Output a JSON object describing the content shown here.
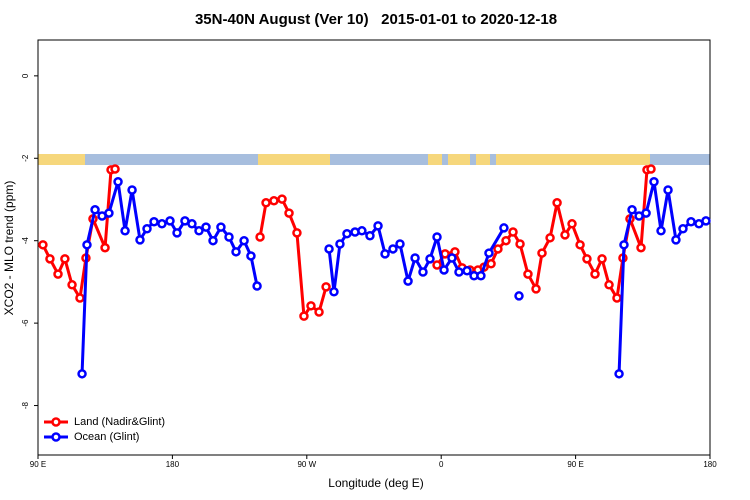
{
  "chart_data": {
    "type": "line",
    "title": "35N-40N August (Ver 10)   2015-01-01 to 2020-12-18",
    "x_label": "Longitude (deg E)",
    "y_label": "XCO2 - MLO trend (ppm)",
    "xlim": [
      90,
      540
    ],
    "ylim": [
      -9.2,
      0.87
    ],
    "xticks": [
      {
        "value": 90,
        "label": "90 E"
      },
      {
        "value": 180,
        "label": "180"
      },
      {
        "value": 270,
        "label": "90 W"
      },
      {
        "value": 360,
        "label": "0"
      },
      {
        "value": 450,
        "label": "90 E"
      },
      {
        "value": 540,
        "label": "180"
      }
    ],
    "yticks": [
      0,
      -2,
      -4,
      -6,
      -8
    ],
    "legend": "bottom-left",
    "series": [
      {
        "name": "Land (Nadir&Glint)",
        "color": "#ff0000",
        "x": [
          93.3,
          98,
          103.4,
          108,
          112.8,
          118.1,
          122.1,
          126.8,
          134.9,
          138.9,
          141.6,
          null,
          238.7,
          242.7,
          248,
          253.4,
          258.1,
          263.4,
          268.1,
          272.8,
          278.2,
          282.9,
          null,
          357.2,
          362.6,
          369.2,
          374,
          379.3,
          384.6,
          388.7,
          393.4,
          398,
          403.4,
          408.1,
          412.8,
          418.1,
          423.5,
          427.5,
          432.9,
          437.6,
          442.9,
          447.6,
          453,
          457.6,
          463,
          467.7,
          472.4,
          477.7,
          481.7,
          486.4,
          493.8,
          497.8,
          500.5
        ],
        "values": [
          -4.1,
          -4.44,
          -4.81,
          -4.44,
          -5.07,
          -5.39,
          -4.42,
          -3.47,
          -4.17,
          -2.28,
          -2.26,
          null,
          -3.91,
          -3.08,
          -3.03,
          -2.99,
          -3.33,
          -3.81,
          -5.83,
          -5.58,
          -5.73,
          -5.12,
          null,
          -4.59,
          -4.32,
          -4.27,
          -4.66,
          -4.71,
          -4.71,
          -4.64,
          -4.56,
          -4.2,
          -4.0,
          -3.79,
          -4.08,
          -4.81,
          -5.17,
          -4.3,
          -3.93,
          -3.08,
          -3.86,
          -3.59,
          -4.1,
          -4.44,
          -4.81,
          -4.44,
          -5.07,
          -5.39,
          -4.42,
          -3.47,
          -4.17,
          -2.28,
          -2.26
        ]
      },
      {
        "name": "Ocean (Glint)",
        "color": "#0000ff",
        "x": [
          119.5,
          122.8,
          128.2,
          132.9,
          137.5,
          143.6,
          148.3,
          153,
          158.3,
          163,
          167.7,
          173,
          178.4,
          183.1,
          188.4,
          193.1,
          197.8,
          202.5,
          207.2,
          212.5,
          217.9,
          222.6,
          228,
          232.6,
          236.7,
          null,
          284.9,
          288.2,
          292.2,
          296.9,
          302.3,
          306.9,
          312.3,
          317.7,
          322.4,
          327.7,
          332.4,
          337.8,
          342.5,
          347.8,
          352.5,
          357.2,
          361.9,
          367.2,
          371.9,
          377.3,
          382,
          386.6,
          392,
          402,
          null,
          412.1,
          null,
          479.1,
          482.4,
          487.8,
          492.5,
          497.2,
          502.5,
          507.2,
          511.9,
          517.2,
          521.9,
          527.3,
          532.6,
          537.3
        ],
        "values": [
          -7.23,
          -4.1,
          -3.25,
          -3.4,
          -3.33,
          -2.57,
          -3.76,
          -2.77,
          -3.98,
          -3.71,
          -3.54,
          -3.59,
          -3.52,
          -3.81,
          -3.52,
          -3.59,
          -3.76,
          -3.67,
          -4.0,
          -3.67,
          -3.91,
          -4.27,
          -4.0,
          -4.37,
          -5.1,
          null,
          -4.2,
          -5.24,
          -4.08,
          -3.83,
          -3.79,
          -3.76,
          -3.88,
          -3.64,
          -4.32,
          -4.2,
          -4.08,
          -4.98,
          -4.42,
          -4.76,
          -4.44,
          -3.91,
          -4.71,
          -4.42,
          -4.76,
          -4.73,
          -4.85,
          -4.85,
          -4.3,
          -3.69,
          null,
          -5.34,
          null,
          -7.23,
          -4.1,
          -3.25,
          -3.4,
          -3.33,
          -2.57,
          -3.76,
          -2.77,
          -3.98,
          -3.71,
          -3.54,
          -3.59,
          -3.52
        ]
      }
    ]
  }
}
